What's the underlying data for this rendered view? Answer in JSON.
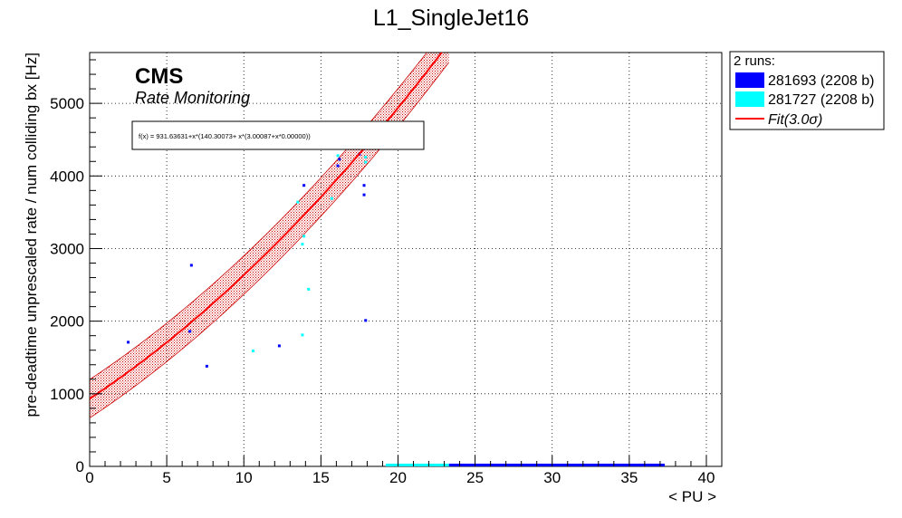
{
  "chart_data": {
    "type": "scatter",
    "title": "L1_SingleJet16",
    "xlabel": "< PU >",
    "ylabel": "pre-deadtime unprescaled rate / num colliding bx [Hz]",
    "xlim": [
      0,
      41
    ],
    "ylim": [
      0,
      5700
    ],
    "x_ticks": [
      0,
      5,
      10,
      15,
      20,
      25,
      30,
      35,
      40
    ],
    "y_ticks": [
      0,
      1000,
      2000,
      3000,
      4000,
      5000
    ],
    "grid": true,
    "legend_position": "top-right outside",
    "legend_header": "2 runs:",
    "cms_label": "CMS",
    "cms_sublabel": "Rate Monitoring",
    "fit_formula": "f(x) = 931.63631+x*(140.30073+ x*(3.00087+x*0.00000))",
    "fit": {
      "name": "Fit(3.0σ)",
      "coeffs": [
        931.63631,
        140.30073,
        3.00087,
        0.0
      ],
      "x_range": [
        0,
        23.3
      ],
      "band_halfwidth": 265,
      "color": "#ff0000"
    },
    "series": [
      {
        "name": "281693 (2208 b)",
        "color": "#0000ff",
        "points": [
          {
            "x": 2.5,
            "y": 1710
          },
          {
            "x": 6.6,
            "y": 2770
          },
          {
            "x": 6.5,
            "y": 1860
          },
          {
            "x": 7.6,
            "y": 1380
          },
          {
            "x": 12.3,
            "y": 1660
          },
          {
            "x": 13.9,
            "y": 3870
          },
          {
            "x": 16.1,
            "y": 4140
          },
          {
            "x": 16.2,
            "y": 4230
          },
          {
            "x": 17.5,
            "y": 4300
          },
          {
            "x": 17.8,
            "y": 3870
          },
          {
            "x": 17.8,
            "y": 3740
          },
          {
            "x": 17.9,
            "y": 2010
          }
        ],
        "zero_range": [
          23.3,
          37.3
        ]
      },
      {
        "name": "281727 (2208 b)",
        "color": "#00ffff",
        "points": [
          {
            "x": 10.6,
            "y": 1590
          },
          {
            "x": 13.8,
            "y": 1810
          },
          {
            "x": 14.2,
            "y": 2440
          },
          {
            "x": 13.5,
            "y": 3640
          },
          {
            "x": 13.8,
            "y": 3060
          },
          {
            "x": 13.9,
            "y": 3170
          },
          {
            "x": 15.7,
            "y": 3690
          },
          {
            "x": 16.1,
            "y": 4280
          },
          {
            "x": 17.9,
            "y": 4190
          },
          {
            "x": 17.9,
            "y": 4260
          }
        ],
        "zero_range": [
          19.2,
          23.3
        ]
      }
    ]
  }
}
